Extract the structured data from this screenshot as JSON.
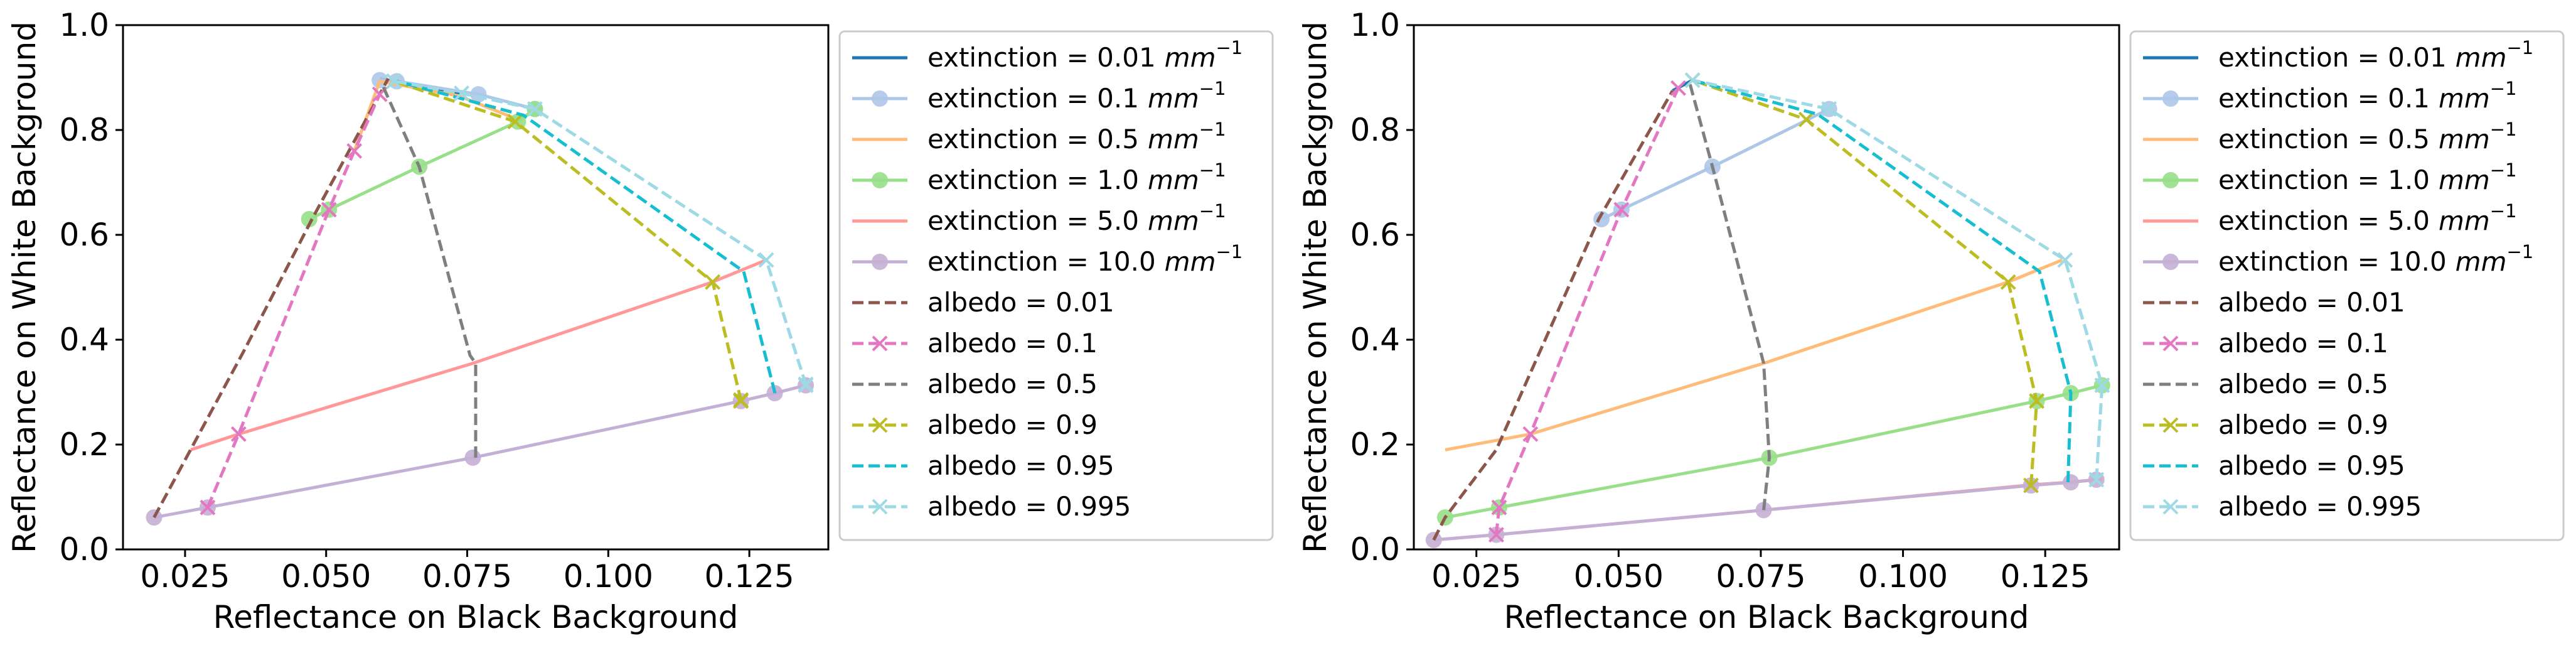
{
  "chart_data": [
    {
      "type": "line",
      "panel": "left",
      "xlabel": "Reflectance on Black Background",
      "ylabel": "Reflectance on White Background",
      "xlim": [
        0.014,
        0.139
      ],
      "ylim": [
        0.0,
        1.0
      ],
      "xticks": [
        "0.025",
        "0.050",
        "0.075",
        "0.100",
        "0.125"
      ],
      "yticks": [
        "0.0",
        "0.2",
        "0.4",
        "0.6",
        "0.8",
        "1.0"
      ],
      "grid": false,
      "legend_position": "outside-right",
      "series": [
        {
          "name": "extinction = 0.01 mm⁻¹",
          "label": "extinction = 0.01",
          "unit": "mm",
          "exp": "−1",
          "color": "#1f77b4",
          "dashed": false,
          "marker": "none",
          "x": [
            0.0595,
            0.062,
            0.074
          ],
          "y": [
            0.898,
            0.893,
            0.87
          ]
        },
        {
          "name": "extinction = 0.1 mm⁻¹",
          "label": "extinction = 0.1",
          "unit": "mm",
          "exp": "−1",
          "color": "#aec7e8",
          "dashed": false,
          "marker": "circle",
          "x": [
            0.0595,
            0.0625,
            0.077,
            0.087
          ],
          "y": [
            0.895,
            0.893,
            0.868,
            0.84
          ]
        },
        {
          "name": "extinction = 0.5 mm⁻¹",
          "label": "extinction = 0.5",
          "unit": "mm",
          "exp": "−1",
          "color": "#ffbb78",
          "dashed": false,
          "marker": "none",
          "x": [
            0.055,
            0.0595,
            0.0735,
            0.0835
          ],
          "y": [
            0.76,
            0.893,
            0.865,
            0.822
          ]
        },
        {
          "name": "extinction = 1.0 mm⁻¹",
          "label": "extinction = 1.0",
          "unit": "mm",
          "exp": "−1",
          "color": "#98df8a",
          "dashed": false,
          "marker": "circle",
          "x": [
            0.047,
            0.0505,
            0.0665,
            0.084,
            0.087
          ],
          "y": [
            0.63,
            0.648,
            0.73,
            0.816,
            0.84
          ]
        },
        {
          "name": "extinction = 5.0 mm⁻¹",
          "label": "extinction = 5.0",
          "unit": "mm",
          "exp": "−1",
          "color": "#ff9896",
          "dashed": false,
          "marker": "none",
          "x": [
            0.026,
            0.0345,
            0.076,
            0.1185,
            0.128
          ],
          "y": [
            0.19,
            0.22,
            0.355,
            0.51,
            0.552
          ]
        },
        {
          "name": "extinction = 10.0 mm⁻¹",
          "label": "extinction = 10.0",
          "unit": "mm",
          "exp": "−1",
          "color": "#c5b0d5",
          "dashed": false,
          "marker": "circle",
          "x": [
            0.0195,
            0.029,
            0.076,
            0.1235,
            0.1295,
            0.135
          ],
          "y": [
            0.061,
            0.08,
            0.175,
            0.283,
            0.298,
            0.313
          ]
        },
        {
          "name": "albedo = 0.01",
          "label": "albedo = 0.01",
          "color": "#8c564b",
          "dashed": true,
          "marker": "none",
          "x": [
            0.0195,
            0.0355,
            0.0475,
            0.061
          ],
          "y": [
            0.061,
            0.38,
            0.63,
            0.898
          ]
        },
        {
          "name": "albedo = 0.1",
          "label": "albedo = 0.1",
          "color": "#e377c2",
          "dashed": true,
          "marker": "x",
          "x": [
            0.029,
            0.0345,
            0.0505,
            0.055,
            0.0595
          ],
          "y": [
            0.08,
            0.22,
            0.648,
            0.76,
            0.868
          ]
        },
        {
          "name": "albedo = 0.5",
          "label": "albedo = 0.5",
          "color": "#7f7f7f",
          "dashed": true,
          "marker": "none",
          "x": [
            0.0765,
            0.0765,
            0.0755,
            0.0665,
            0.0598
          ],
          "y": [
            0.175,
            0.355,
            0.37,
            0.73,
            0.89
          ]
        },
        {
          "name": "albedo = 0.9",
          "label": "albedo = 0.9",
          "color": "#bcbd22",
          "dashed": true,
          "marker": "x",
          "x": [
            0.1235,
            0.1235,
            0.1185,
            0.0835,
            0.062
          ],
          "y": [
            0.283,
            0.285,
            0.51,
            0.816,
            0.893
          ]
        },
        {
          "name": "albedo = 0.95",
          "label": "albedo = 0.95",
          "color": "#17becf",
          "dashed": true,
          "marker": "none",
          "x": [
            0.1295,
            0.1295,
            0.124,
            0.085,
            0.0625
          ],
          "y": [
            0.298,
            0.3,
            0.53,
            0.828,
            0.893
          ]
        },
        {
          "name": "albedo = 0.995",
          "label": "albedo = 0.995",
          "color": "#9edae5",
          "dashed": true,
          "marker": "x",
          "x": [
            0.135,
            0.135,
            0.128,
            0.087,
            0.074,
            0.062
          ],
          "y": [
            0.313,
            0.315,
            0.552,
            0.84,
            0.87,
            0.893
          ]
        }
      ]
    },
    {
      "type": "line",
      "panel": "right",
      "xlabel": "Reflectance on Black Background",
      "ylabel": "Reflectance on White Background",
      "xlim": [
        0.014,
        0.138
      ],
      "ylim": [
        0.0,
        1.0
      ],
      "xticks": [
        "0.025",
        "0.050",
        "0.075",
        "0.100",
        "0.125"
      ],
      "yticks": [
        "0.0",
        "0.2",
        "0.4",
        "0.6",
        "0.8",
        "1.0"
      ],
      "grid": false,
      "legend_position": "outside-right",
      "series": [
        {
          "name": "extinction = 0.01 mm⁻¹",
          "label": "extinction = 0.01",
          "unit": "mm",
          "exp": "−1",
          "color": "#1f77b4",
          "dashed": false,
          "marker": "none",
          "x": [
            0.0595,
            0.063
          ],
          "y": [
            0.875,
            0.895
          ]
        },
        {
          "name": "extinction = 0.1 mm⁻¹",
          "label": "extinction = 0.1",
          "unit": "mm",
          "exp": "−1",
          "color": "#aec7e8",
          "dashed": false,
          "marker": "circle",
          "x": [
            0.047,
            0.0505,
            0.0665,
            0.087
          ],
          "y": [
            0.63,
            0.648,
            0.73,
            0.84
          ]
        },
        {
          "name": "extinction = 0.5 mm⁻¹",
          "label": "extinction = 0.5",
          "unit": "mm",
          "exp": "−1",
          "color": "#ffbb78",
          "dashed": false,
          "marker": "none",
          "x": [
            0.0195,
            0.0345,
            0.0755,
            0.1185,
            0.128
          ],
          "y": [
            0.19,
            0.22,
            0.355,
            0.51,
            0.552
          ]
        },
        {
          "name": "extinction = 1.0 mm⁻¹",
          "label": "extinction = 1.0",
          "unit": "mm",
          "exp": "−1",
          "color": "#98df8a",
          "dashed": false,
          "marker": "circle",
          "x": [
            0.0195,
            0.029,
            0.0765,
            0.1235,
            0.1295,
            0.135
          ],
          "y": [
            0.061,
            0.08,
            0.175,
            0.283,
            0.298,
            0.313
          ]
        },
        {
          "name": "extinction = 5.0 mm⁻¹",
          "label": "extinction = 5.0",
          "unit": "mm",
          "exp": "−1",
          "color": "#ff9896",
          "dashed": false,
          "marker": "none",
          "x": [
            0.0175,
            0.0285,
            0.0755,
            0.1225,
            0.129,
            0.135
          ],
          "y": [
            0.018,
            0.028,
            0.075,
            0.123,
            0.128,
            0.134
          ]
        },
        {
          "name": "extinction = 10.0 mm⁻¹",
          "label": "extinction = 10.0",
          "unit": "mm",
          "exp": "−1",
          "color": "#c5b0d5",
          "dashed": false,
          "marker": "circle",
          "x": [
            0.0175,
            0.0285,
            0.0755,
            0.1225,
            0.1295,
            0.134
          ],
          "y": [
            0.018,
            0.028,
            0.075,
            0.122,
            0.128,
            0.133
          ]
        },
        {
          "name": "albedo = 0.01",
          "label": "albedo = 0.01",
          "color": "#8c564b",
          "dashed": true,
          "marker": "none",
          "x": [
            0.0175,
            0.0195,
            0.0285,
            0.0465,
            0.0595
          ],
          "y": [
            0.018,
            0.061,
            0.19,
            0.63,
            0.875
          ]
        },
        {
          "name": "albedo = 0.1",
          "label": "albedo = 0.1",
          "color": "#e377c2",
          "dashed": true,
          "marker": "x",
          "x": [
            0.0285,
            0.029,
            0.0345,
            0.0505,
            0.0605
          ],
          "y": [
            0.028,
            0.08,
            0.22,
            0.648,
            0.88
          ]
        },
        {
          "name": "albedo = 0.5",
          "label": "albedo = 0.5",
          "color": "#7f7f7f",
          "dashed": true,
          "marker": "none",
          "x": [
            0.0755,
            0.0765,
            0.0755,
            0.0665,
            0.0625
          ],
          "y": [
            0.075,
            0.175,
            0.355,
            0.73,
            0.89
          ]
        },
        {
          "name": "albedo = 0.9",
          "label": "albedo = 0.9",
          "color": "#bcbd22",
          "dashed": true,
          "marker": "x",
          "x": [
            0.1225,
            0.1235,
            0.1185,
            0.083,
            0.063
          ],
          "y": [
            0.122,
            0.283,
            0.51,
            0.82,
            0.895
          ]
        },
        {
          "name": "albedo = 0.95",
          "label": "albedo = 0.95",
          "color": "#17becf",
          "dashed": true,
          "marker": "none",
          "x": [
            0.129,
            0.1295,
            0.124,
            0.085,
            0.063
          ],
          "y": [
            0.128,
            0.298,
            0.53,
            0.83,
            0.895
          ]
        },
        {
          "name": "albedo = 0.995",
          "label": "albedo = 0.995",
          "color": "#9edae5",
          "dashed": true,
          "marker": "x",
          "x": [
            0.134,
            0.135,
            0.1285,
            0.087,
            0.063
          ],
          "y": [
            0.133,
            0.313,
            0.552,
            0.84,
            0.895
          ]
        }
      ]
    }
  ]
}
